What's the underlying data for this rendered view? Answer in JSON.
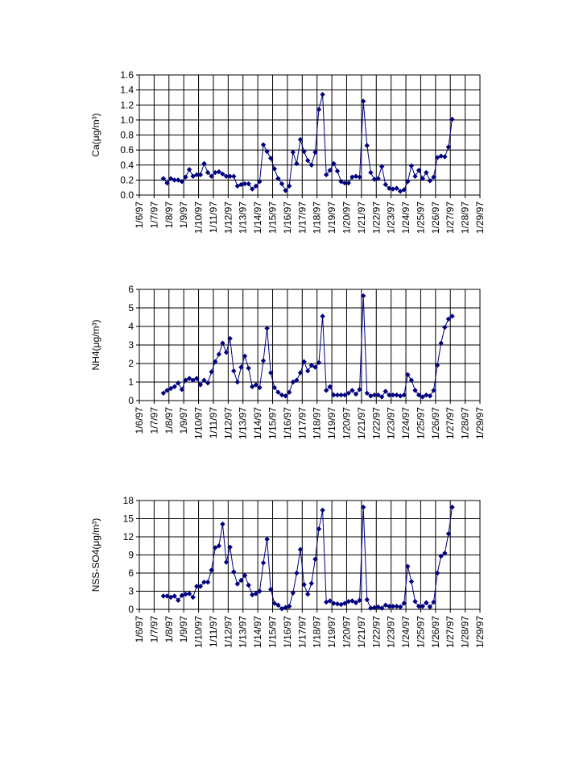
{
  "chart_data": [
    {
      "type": "line",
      "ylabel": "Ca(μg/m³)",
      "color": "#000080",
      "grid": true,
      "xlim": [
        35436,
        35459
      ],
      "xticks": [
        {
          "value": 35436,
          "label": "1/6/97"
        },
        {
          "value": 35437,
          "label": "1/7/97"
        },
        {
          "value": 35438,
          "label": "1/8/97"
        },
        {
          "value": 35439,
          "label": "1/9/97"
        },
        {
          "value": 35440,
          "label": "1/10/97"
        },
        {
          "value": 35441,
          "label": "1/11/97"
        },
        {
          "value": 35442,
          "label": "1/12/97"
        },
        {
          "value": 35443,
          "label": "1/13/97"
        },
        {
          "value": 35444,
          "label": "1/14/97"
        },
        {
          "value": 35445,
          "label": "1/15/97"
        },
        {
          "value": 35446,
          "label": "1/16/97"
        },
        {
          "value": 35447,
          "label": "1/17/97"
        },
        {
          "value": 35448,
          "label": "1/18/97"
        },
        {
          "value": 35449,
          "label": "1/19/97"
        },
        {
          "value": 35450,
          "label": "1/20/97"
        },
        {
          "value": 35451,
          "label": "1/21/97"
        },
        {
          "value": 35452,
          "label": "1/22/97"
        },
        {
          "value": 35453,
          "label": "1/23/97"
        },
        {
          "value": 35454,
          "label": "1/24/97"
        },
        {
          "value": 35455,
          "label": "1/25/97"
        },
        {
          "value": 35456,
          "label": "1/26/97"
        },
        {
          "value": 35457,
          "label": "1/27/97"
        },
        {
          "value": 35458,
          "label": "1/28/97"
        },
        {
          "value": 35459,
          "label": "1/29/97"
        }
      ],
      "ylim": [
        0,
        1.6
      ],
      "yticks": [
        {
          "value": 0,
          "label": "0.0"
        },
        0.2,
        0.4,
        0.6,
        0.8,
        {
          "value": 1,
          "label": "1.0"
        },
        1.2,
        1.4,
        1.6
      ],
      "x": [
        35437.625,
        35437.875,
        35438.125,
        35438.375,
        35438.625,
        35438.875,
        35439.125,
        35439.375,
        35439.625,
        35439.875,
        35440.125,
        35440.375,
        35440.625,
        35440.875,
        35441.125,
        35441.375,
        35441.625,
        35441.875,
        35442.125,
        35442.375,
        35442.625,
        35442.875,
        35443.125,
        35443.375,
        35443.625,
        35443.875,
        35444.125,
        35444.375,
        35444.625,
        35444.875,
        35445.125,
        35445.375,
        35445.625,
        35445.875,
        35446.125,
        35446.375,
        35446.625,
        35446.875,
        35447.125,
        35447.375,
        35447.625,
        35447.875,
        35448.125,
        35448.375,
        35448.625,
        35448.875,
        35449.125,
        35449.375,
        35449.625,
        35449.875,
        35450.125,
        35450.375,
        35450.625,
        35450.875,
        35451.125,
        35451.375,
        35451.625,
        35451.875,
        35452.125,
        35452.375,
        35452.625,
        35452.875,
        35453.125,
        35453.375,
        35453.625,
        35453.875,
        35454.125,
        35454.375,
        35454.625,
        35454.875,
        35455.125,
        35455.375,
        35455.625,
        35455.875,
        35456.125,
        35456.375,
        35456.625,
        35456.875,
        35457.125
      ],
      "values": [
        0.22,
        0.16,
        0.22,
        0.2,
        0.2,
        0.18,
        0.24,
        0.34,
        0.25,
        0.27,
        0.27,
        0.42,
        0.3,
        0.25,
        0.3,
        0.31,
        0.28,
        0.25,
        0.25,
        0.25,
        0.12,
        0.14,
        0.15,
        0.15,
        0.08,
        0.12,
        0.18,
        0.67,
        0.58,
        0.49,
        0.35,
        0.22,
        0.15,
        0.06,
        0.12,
        0.57,
        0.42,
        0.74,
        0.58,
        0.46,
        0.4,
        0.57,
        1.14,
        1.34,
        0.27,
        0.33,
        0.42,
        0.32,
        0.18,
        0.16,
        0.16,
        0.24,
        0.25,
        0.24,
        1.25,
        0.66,
        0.3,
        0.21,
        0.22,
        0.38,
        0.14,
        0.09,
        0.08,
        0.09,
        0.05,
        0.07,
        0.18,
        0.39,
        0.25,
        0.33,
        0.22,
        0.3,
        0.19,
        0.24,
        0.5,
        0.52,
        0.51,
        0.64,
        1.01
      ]
    },
    {
      "type": "line",
      "ylabel": "NH4(μg/m³)",
      "color": "#000080",
      "grid": true,
      "xlim": [
        35436,
        35459
      ],
      "xticks": [
        {
          "value": 35436,
          "label": "1/6/97"
        },
        {
          "value": 35437,
          "label": "1/7/97"
        },
        {
          "value": 35438,
          "label": "1/8/97"
        },
        {
          "value": 35439,
          "label": "1/9/97"
        },
        {
          "value": 35440,
          "label": "1/10/97"
        },
        {
          "value": 35441,
          "label": "1/11/97"
        },
        {
          "value": 35442,
          "label": "1/12/97"
        },
        {
          "value": 35443,
          "label": "1/13/97"
        },
        {
          "value": 35444,
          "label": "1/14/97"
        },
        {
          "value": 35445,
          "label": "1/15/97"
        },
        {
          "value": 35446,
          "label": "1/16/97"
        },
        {
          "value": 35447,
          "label": "1/17/97"
        },
        {
          "value": 35448,
          "label": "1/18/97"
        },
        {
          "value": 35449,
          "label": "1/19/97"
        },
        {
          "value": 35450,
          "label": "1/20/97"
        },
        {
          "value": 35451,
          "label": "1/21/97"
        },
        {
          "value": 35452,
          "label": "1/22/97"
        },
        {
          "value": 35453,
          "label": "1/23/97"
        },
        {
          "value": 35454,
          "label": "1/24/97"
        },
        {
          "value": 35455,
          "label": "1/25/97"
        },
        {
          "value": 35456,
          "label": "1/26/97"
        },
        {
          "value": 35457,
          "label": "1/27/97"
        },
        {
          "value": 35458,
          "label": "1/28/97"
        },
        {
          "value": 35459,
          "label": "1/29/97"
        }
      ],
      "ylim": [
        0,
        6
      ],
      "yticks": [
        0,
        1,
        2,
        3,
        4,
        5,
        6
      ],
      "x": [
        35437.625,
        35437.875,
        35438.125,
        35438.375,
        35438.625,
        35438.875,
        35439.125,
        35439.375,
        35439.625,
        35439.875,
        35440.125,
        35440.375,
        35440.625,
        35440.875,
        35441.125,
        35441.375,
        35441.625,
        35441.875,
        35442.125,
        35442.375,
        35442.625,
        35442.875,
        35443.125,
        35443.375,
        35443.625,
        35443.875,
        35444.125,
        35444.375,
        35444.625,
        35444.875,
        35445.125,
        35445.375,
        35445.625,
        35445.875,
        35446.125,
        35446.375,
        35446.625,
        35446.875,
        35447.125,
        35447.375,
        35447.625,
        35447.875,
        35448.125,
        35448.375,
        35448.625,
        35448.875,
        35449.125,
        35449.375,
        35449.625,
        35449.875,
        35450.125,
        35450.375,
        35450.625,
        35450.875,
        35451.125,
        35451.375,
        35451.625,
        35451.875,
        35452.125,
        35452.375,
        35452.625,
        35452.875,
        35453.125,
        35453.375,
        35453.625,
        35453.875,
        35454.125,
        35454.375,
        35454.625,
        35454.875,
        35455.125,
        35455.375,
        35455.625,
        35455.875,
        35456.125,
        35456.375,
        35456.625,
        35456.875,
        35457.125
      ],
      "values": [
        0.4,
        0.55,
        0.65,
        0.75,
        0.95,
        0.6,
        1.1,
        1.2,
        1.1,
        1.2,
        0.85,
        1.1,
        0.95,
        1.55,
        2.1,
        2.5,
        3.1,
        2.6,
        3.35,
        1.6,
        1.0,
        1.8,
        2.4,
        1.75,
        0.75,
        0.85,
        0.7,
        2.15,
        3.9,
        1.5,
        0.7,
        0.45,
        0.3,
        0.25,
        0.45,
        1.0,
        1.1,
        1.5,
        2.1,
        1.6,
        1.9,
        1.8,
        2.05,
        4.55,
        0.55,
        0.75,
        0.3,
        0.3,
        0.3,
        0.3,
        0.4,
        0.55,
        0.35,
        0.6,
        5.65,
        0.4,
        0.25,
        0.3,
        0.3,
        0.2,
        0.5,
        0.3,
        0.3,
        0.3,
        0.25,
        0.3,
        1.4,
        1.1,
        0.55,
        0.3,
        0.2,
        0.3,
        0.25,
        0.55,
        1.9,
        3.1,
        3.95,
        4.4,
        4.55
      ]
    },
    {
      "type": "line",
      "ylabel": "NSS-SO4(μg/m³)",
      "color": "#000080",
      "grid": true,
      "xlim": [
        35436,
        35459
      ],
      "xticks": [
        {
          "value": 35436,
          "label": "1/6/97"
        },
        {
          "value": 35437,
          "label": "1/7/97"
        },
        {
          "value": 35438,
          "label": "1/8/97"
        },
        {
          "value": 35439,
          "label": "1/9/97"
        },
        {
          "value": 35440,
          "label": "1/10/97"
        },
        {
          "value": 35441,
          "label": "1/11/97"
        },
        {
          "value": 35442,
          "label": "1/12/97"
        },
        {
          "value": 35443,
          "label": "1/13/97"
        },
        {
          "value": 35444,
          "label": "1/14/97"
        },
        {
          "value": 35445,
          "label": "1/15/97"
        },
        {
          "value": 35446,
          "label": "1/16/97"
        },
        {
          "value": 35447,
          "label": "1/17/97"
        },
        {
          "value": 35448,
          "label": "1/18/97"
        },
        {
          "value": 35449,
          "label": "1/19/97"
        },
        {
          "value": 35450,
          "label": "1/20/97"
        },
        {
          "value": 35451,
          "label": "1/21/97"
        },
        {
          "value": 35452,
          "label": "1/22/97"
        },
        {
          "value": 35453,
          "label": "1/23/97"
        },
        {
          "value": 35454,
          "label": "1/24/97"
        },
        {
          "value": 35455,
          "label": "1/25/97"
        },
        {
          "value": 35456,
          "label": "1/26/97"
        },
        {
          "value": 35457,
          "label": "1/27/97"
        },
        {
          "value": 35458,
          "label": "1/28/97"
        },
        {
          "value": 35459,
          "label": "1/29/97"
        }
      ],
      "ylim": [
        0,
        18
      ],
      "yticks": [
        0,
        3,
        6,
        9,
        12,
        15,
        18
      ],
      "x": [
        35437.625,
        35437.875,
        35438.125,
        35438.375,
        35438.625,
        35438.875,
        35439.125,
        35439.375,
        35439.625,
        35439.875,
        35440.125,
        35440.375,
        35440.625,
        35440.875,
        35441.125,
        35441.375,
        35441.625,
        35441.875,
        35442.125,
        35442.375,
        35442.625,
        35442.875,
        35443.125,
        35443.375,
        35443.625,
        35443.875,
        35444.125,
        35444.375,
        35444.625,
        35444.875,
        35445.125,
        35445.375,
        35445.625,
        35445.875,
        35446.125,
        35446.375,
        35446.625,
        35446.875,
        35447.125,
        35447.375,
        35447.625,
        35447.875,
        35448.125,
        35448.375,
        35448.625,
        35448.875,
        35449.125,
        35449.375,
        35449.625,
        35449.875,
        35450.125,
        35450.375,
        35450.625,
        35450.875,
        35451.125,
        35451.375,
        35451.625,
        35451.875,
        35452.125,
        35452.375,
        35452.625,
        35452.875,
        35453.125,
        35453.375,
        35453.625,
        35453.875,
        35454.125,
        35454.375,
        35454.625,
        35454.875,
        35455.125,
        35455.375,
        35455.625,
        35455.875,
        35456.125,
        35456.375,
        35456.625,
        35456.875,
        35457.125
      ],
      "values": [
        2.2,
        2.2,
        2.0,
        2.2,
        1.5,
        2.3,
        2.5,
        2.6,
        2.0,
        3.8,
        3.8,
        4.5,
        4.5,
        6.5,
        10.2,
        10.5,
        14.1,
        7.8,
        10.3,
        6.2,
        4.2,
        4.8,
        5.6,
        4.0,
        2.4,
        2.6,
        3.0,
        7.7,
        11.6,
        3.3,
        1.0,
        0.7,
        0.1,
        0.3,
        0.5,
        2.7,
        6.0,
        9.9,
        4.1,
        2.5,
        4.3,
        8.3,
        13.3,
        16.4,
        1.2,
        1.4,
        1.0,
        0.9,
        0.8,
        1.0,
        1.3,
        1.4,
        1.1,
        1.5,
        16.9,
        1.6,
        0.2,
        0.3,
        0.4,
        0.2,
        0.7,
        0.5,
        0.5,
        0.5,
        0.4,
        1.0,
        7.1,
        4.6,
        1.3,
        0.5,
        0.5,
        1.1,
        0.4,
        1.2,
        6.0,
        8.8,
        9.3,
        12.5,
        16.9
      ]
    }
  ]
}
